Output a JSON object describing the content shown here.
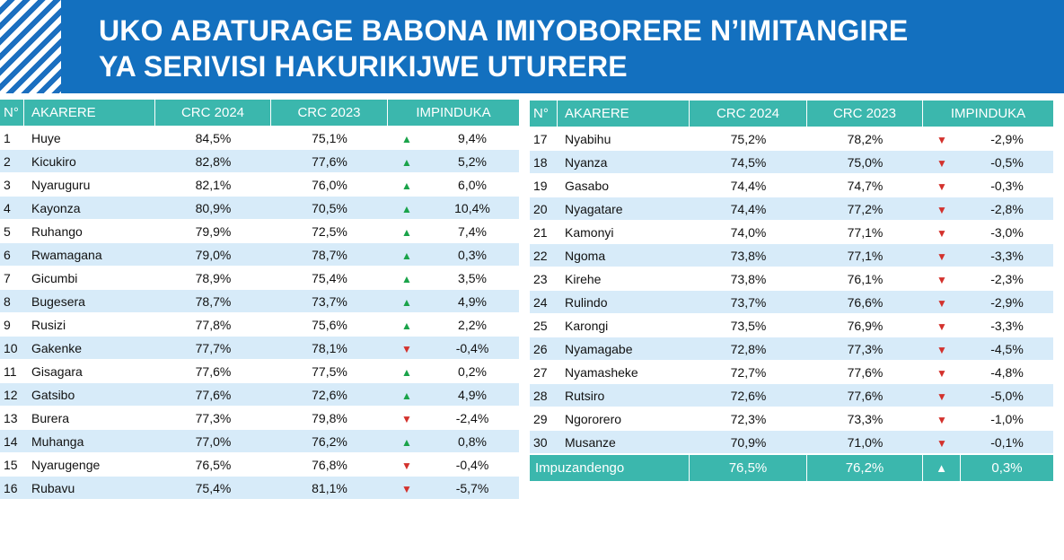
{
  "header": {
    "title_line1": "UKO ABATURAGE BABONA IMIYOBORERE N’IMITANGIRE",
    "title_line2": "YA SERIVISI HAKURIKIJWE UTURERE"
  },
  "columns": {
    "no": "N°",
    "district": "AKARERE",
    "crc2024": "CRC 2024",
    "crc2023": "CRC 2023",
    "change": "IMPINDUKA"
  },
  "left_rows": [
    {
      "no": "1",
      "name": "Huye",
      "crc2024": "84,5%",
      "crc2023": "75,1%",
      "dir": "up",
      "change": "9,4%"
    },
    {
      "no": "2",
      "name": "Kicukiro",
      "crc2024": "82,8%",
      "crc2023": "77,6%",
      "dir": "up",
      "change": "5,2%"
    },
    {
      "no": "3",
      "name": "Nyaruguru",
      "crc2024": "82,1%",
      "crc2023": "76,0%",
      "dir": "up",
      "change": "6,0%"
    },
    {
      "no": "4",
      "name": "Kayonza",
      "crc2024": "80,9%",
      "crc2023": "70,5%",
      "dir": "up",
      "change": "10,4%"
    },
    {
      "no": "5",
      "name": "Ruhango",
      "crc2024": "79,9%",
      "crc2023": "72,5%",
      "dir": "up",
      "change": "7,4%"
    },
    {
      "no": "6",
      "name": "Rwamagana",
      "crc2024": "79,0%",
      "crc2023": "78,7%",
      "dir": "up",
      "change": "0,3%"
    },
    {
      "no": "7",
      "name": "Gicumbi",
      "crc2024": "78,9%",
      "crc2023": "75,4%",
      "dir": "up",
      "change": "3,5%"
    },
    {
      "no": "8",
      "name": "Bugesera",
      "crc2024": "78,7%",
      "crc2023": "73,7%",
      "dir": "up",
      "change": "4,9%"
    },
    {
      "no": "9",
      "name": "Rusizi",
      "crc2024": "77,8%",
      "crc2023": "75,6%",
      "dir": "up",
      "change": "2,2%"
    },
    {
      "no": "10",
      "name": "Gakenke",
      "crc2024": "77,7%",
      "crc2023": "78,1%",
      "dir": "down",
      "change": "-0,4%"
    },
    {
      "no": "11",
      "name": "Gisagara",
      "crc2024": "77,6%",
      "crc2023": "77,5%",
      "dir": "up",
      "change": "0,2%"
    },
    {
      "no": "12",
      "name": "Gatsibo",
      "crc2024": "77,6%",
      "crc2023": "72,6%",
      "dir": "up",
      "change": "4,9%"
    },
    {
      "no": "13",
      "name": "Burera",
      "crc2024": "77,3%",
      "crc2023": "79,8%",
      "dir": "down",
      "change": "-2,4%"
    },
    {
      "no": "14",
      "name": "Muhanga",
      "crc2024": "77,0%",
      "crc2023": "76,2%",
      "dir": "up",
      "change": "0,8%"
    },
    {
      "no": "15",
      "name": "Nyarugenge",
      "crc2024": "76,5%",
      "crc2023": "76,8%",
      "dir": "down",
      "change": "-0,4%"
    },
    {
      "no": "16",
      "name": "Rubavu",
      "crc2024": "75,4%",
      "crc2023": "81,1%",
      "dir": "down",
      "change": "-5,7%"
    }
  ],
  "right_rows": [
    {
      "no": "17",
      "name": "Nyabihu",
      "crc2024": "75,2%",
      "crc2023": "78,2%",
      "dir": "down",
      "change": "-2,9%"
    },
    {
      "no": "18",
      "name": "Nyanza",
      "crc2024": "74,5%",
      "crc2023": "75,0%",
      "dir": "down",
      "change": "-0,5%"
    },
    {
      "no": "19",
      "name": "Gasabo",
      "crc2024": "74,4%",
      "crc2023": "74,7%",
      "dir": "down",
      "change": "-0,3%"
    },
    {
      "no": "20",
      "name": "Nyagatare",
      "crc2024": "74,4%",
      "crc2023": "77,2%",
      "dir": "down",
      "change": "-2,8%"
    },
    {
      "no": "21",
      "name": "Kamonyi",
      "crc2024": "74,0%",
      "crc2023": "77,1%",
      "dir": "down",
      "change": "-3,0%"
    },
    {
      "no": "22",
      "name": "Ngoma",
      "crc2024": "73,8%",
      "crc2023": "77,1%",
      "dir": "down",
      "change": "-3,3%"
    },
    {
      "no": "23",
      "name": "Kirehe",
      "crc2024": "73,8%",
      "crc2023": "76,1%",
      "dir": "down",
      "change": "-2,3%"
    },
    {
      "no": "24",
      "name": "Rulindo",
      "crc2024": "73,7%",
      "crc2023": "76,6%",
      "dir": "down",
      "change": "-2,9%"
    },
    {
      "no": "25",
      "name": "Karongi",
      "crc2024": "73,5%",
      "crc2023": "76,9%",
      "dir": "down",
      "change": "-3,3%"
    },
    {
      "no": "26",
      "name": "Nyamagabe",
      "crc2024": "72,8%",
      "crc2023": "77,3%",
      "dir": "down",
      "change": "-4,5%"
    },
    {
      "no": "27",
      "name": "Nyamasheke",
      "crc2024": "72,7%",
      "crc2023": "77,6%",
      "dir": "down",
      "change": "-4,8%"
    },
    {
      "no": "28",
      "name": "Rutsiro",
      "crc2024": "72,6%",
      "crc2023": "77,6%",
      "dir": "down",
      "change": "-5,0%"
    },
    {
      "no": "29",
      "name": "Ngororero",
      "crc2024": "72,3%",
      "crc2023": "73,3%",
      "dir": "down",
      "change": "-1,0%"
    },
    {
      "no": "30",
      "name": "Musanze",
      "crc2024": "70,9%",
      "crc2023": "71,0%",
      "dir": "down",
      "change": "-0,1%"
    }
  ],
  "average": {
    "label": "Impuzandengo",
    "crc2024": "76,5%",
    "crc2023": "76,2%",
    "dir": "up",
    "change": "0,3%"
  },
  "colors": {
    "header_blue": "#1370bf",
    "teal": "#3bb7ad",
    "row_alt": "#d7ebf9",
    "up_green": "#1aa34a",
    "down_red": "#d3312c"
  },
  "icons": {
    "up": "triangle-up-icon",
    "down": "chevron-down-icon"
  }
}
